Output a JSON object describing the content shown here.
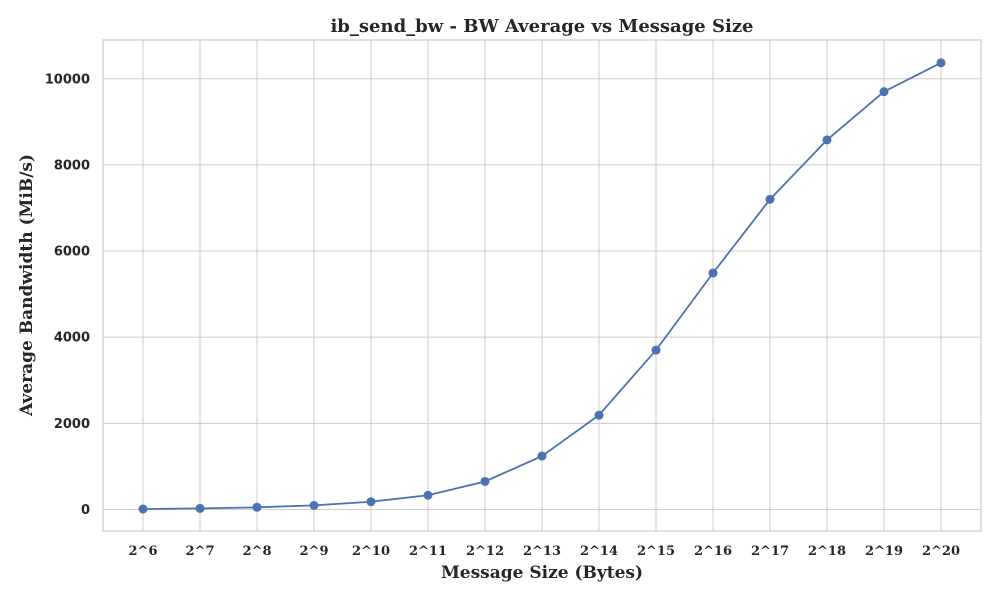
{
  "chart_data": {
    "type": "line",
    "title": "ib_send_bw - BW Average vs Message Size",
    "xlabel": "Message Size (Bytes)",
    "ylabel": "Average Bandwidth (MiB/s)",
    "categories": [
      "2^6",
      "2^7",
      "2^8",
      "2^9",
      "2^10",
      "2^11",
      "2^12",
      "2^13",
      "2^14",
      "2^15",
      "2^16",
      "2^17",
      "2^18",
      "2^19",
      "2^20"
    ],
    "series": [
      {
        "values": [
          10,
          25,
          50,
          95,
          180,
          330,
          650,
          1240,
          2190,
          3700,
          5490,
          7200,
          8580,
          9700,
          10370
        ]
      }
    ],
    "yticks": [
      0,
      2000,
      4000,
      6000,
      8000,
      10000
    ],
    "ylim": [
      -500,
      10900
    ],
    "grid": true,
    "line_color": "#4c72b0",
    "grid_color": "#cccccc",
    "frame_color": "#cccccc"
  }
}
